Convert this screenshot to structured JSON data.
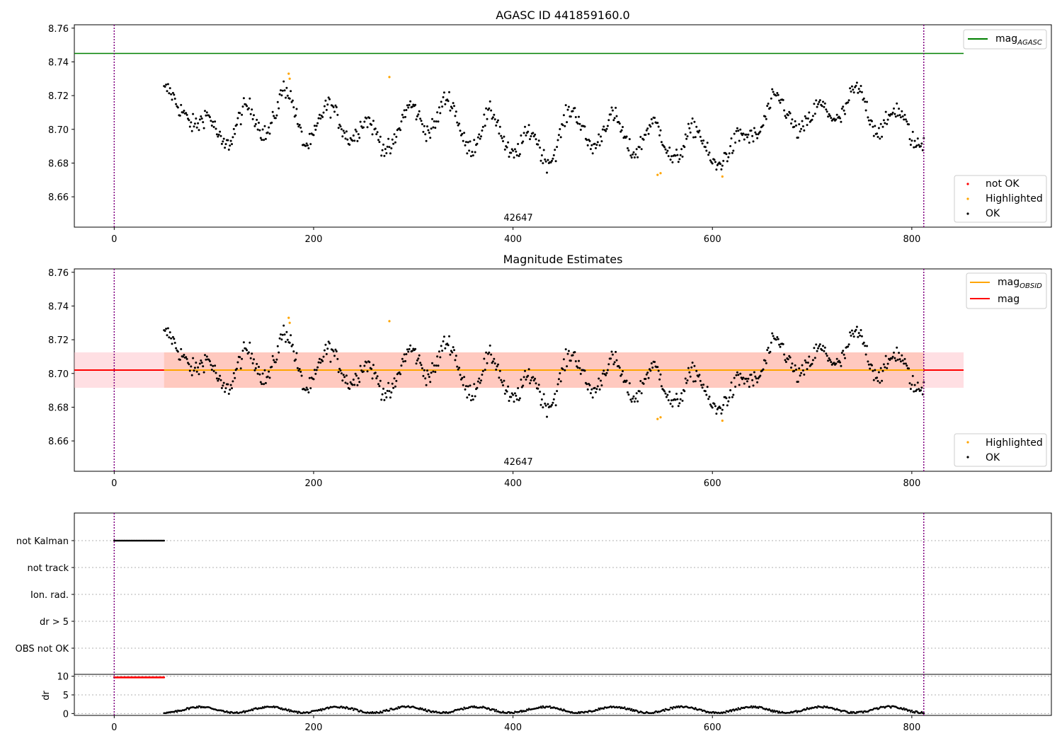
{
  "chart_data": [
    {
      "type": "scatter",
      "title": "AGASC ID 441859160.0",
      "xlim": [
        -40,
        940
      ],
      "ylim": [
        8.642,
        8.762
      ],
      "x_ticks": [
        "0",
        "200",
        "400",
        "600",
        "800"
      ],
      "y_ticks": [
        "8.66",
        "8.68",
        "8.70",
        "8.72",
        "8.74",
        "8.76"
      ],
      "annotation": "42647",
      "vertical_lines": [
        0,
        812
      ],
      "mag_agasc": 8.745,
      "line_legend": [
        {
          "label": "mag",
          "sub": "AGASC",
          "color": "#008000"
        }
      ],
      "point_legend": [
        {
          "label": "not OK",
          "color": "#ff0000"
        },
        {
          "label": "Highlighted",
          "color": "#ffa500"
        },
        {
          "label": "OK",
          "color": "#000000"
        }
      ],
      "highlighted": [
        [
          175,
          8.733
        ],
        [
          176,
          8.73
        ],
        [
          276,
          8.731
        ],
        [
          545,
          8.673
        ],
        [
          548,
          8.674
        ],
        [
          610,
          8.672
        ]
      ]
    },
    {
      "type": "scatter",
      "title": "Magnitude Estimates",
      "xlim": [
        -40,
        940
      ],
      "ylim": [
        8.642,
        8.762
      ],
      "x_ticks": [
        "0",
        "200",
        "400",
        "600",
        "800"
      ],
      "y_ticks": [
        "8.66",
        "8.68",
        "8.70",
        "8.72",
        "8.74",
        "8.76"
      ],
      "annotation": "42647",
      "vertical_lines": [
        0,
        812
      ],
      "mag": 8.702,
      "mag_band": [
        8.6915,
        8.7125
      ],
      "line_legend": [
        {
          "label": "mag",
          "sub": "OBSID",
          "color": "#ffa500"
        },
        {
          "label": "mag",
          "sub": "",
          "color": "#ff0000"
        }
      ],
      "point_legend": [
        {
          "label": "Highlighted",
          "color": "#ffa500"
        },
        {
          "label": "OK",
          "color": "#000000"
        }
      ],
      "highlighted": [
        [
          175,
          8.733
        ],
        [
          176,
          8.73
        ],
        [
          276,
          8.731
        ],
        [
          545,
          8.673
        ],
        [
          548,
          8.674
        ],
        [
          610,
          8.672
        ]
      ]
    },
    {
      "type": "scatter",
      "flag_labels": [
        "not Kalman",
        "not track",
        "Ion. rad.",
        "dr > 5",
        "OBS not OK"
      ],
      "not_kalman_range": [
        0,
        50
      ],
      "dr_ylabel": "dr",
      "dr_ticks": [
        "0",
        "5",
        "10"
      ],
      "dr_ylim": [
        -0.5,
        10.5
      ],
      "dr_clipped_value": 9.7,
      "dr_clipped_range": [
        0,
        50
      ],
      "x_ticks": [
        "0",
        "200",
        "400",
        "600",
        "800"
      ],
      "vertical_lines": [
        0,
        812
      ]
    }
  ]
}
